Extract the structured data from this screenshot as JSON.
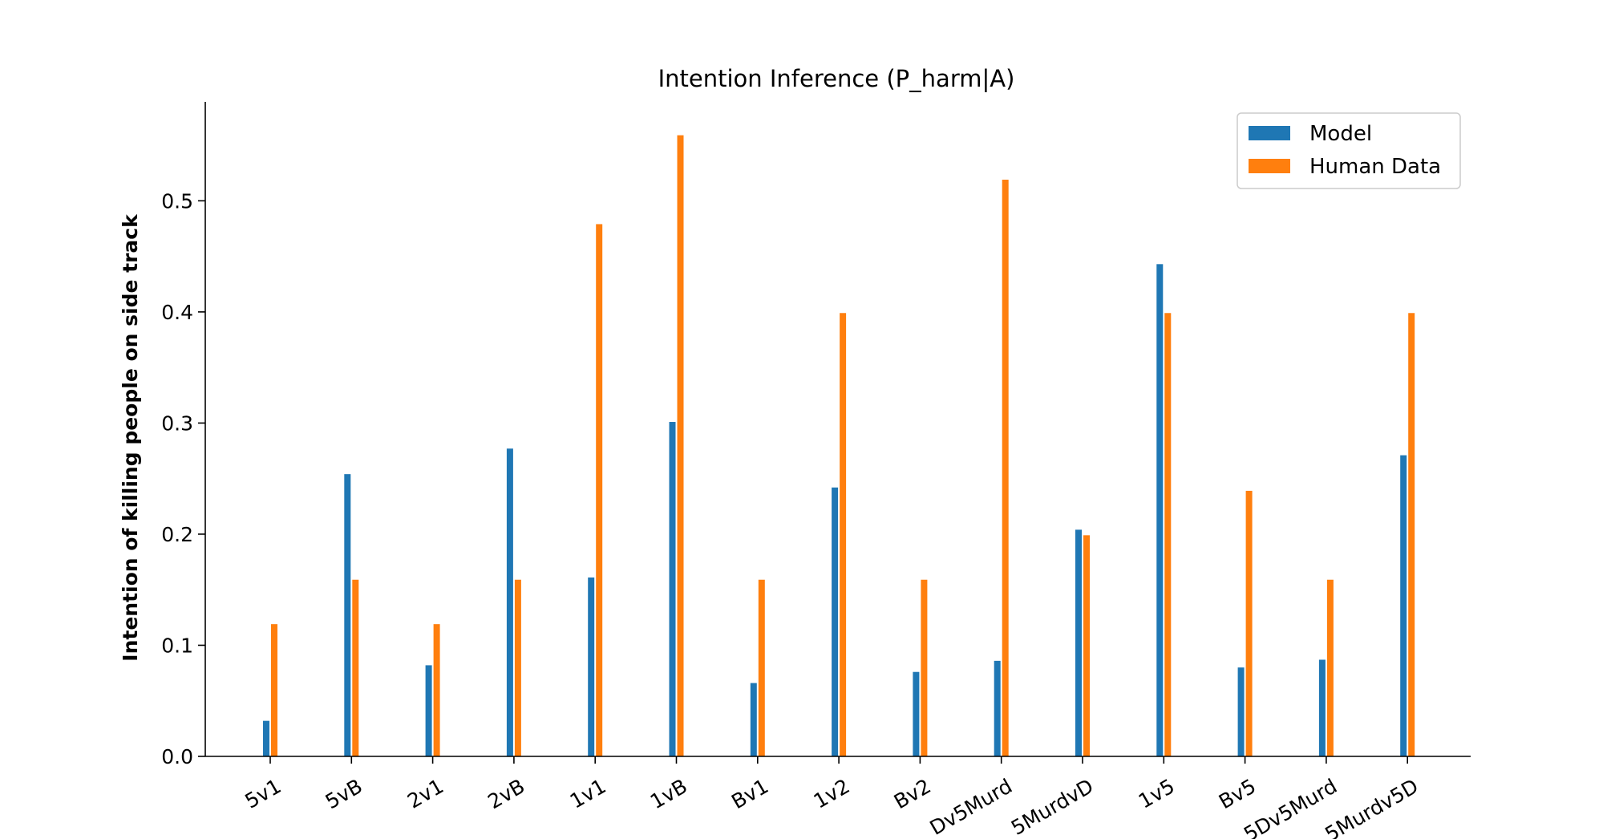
{
  "chart_data": {
    "type": "bar",
    "title": "Intention Inference (P_harm|A)",
    "xlabel": "",
    "ylabel": "Intention of killing people on side track",
    "ylim": [
      0,
      0.59
    ],
    "yticks": [
      "0.0",
      "0.1",
      "0.2",
      "0.3",
      "0.4",
      "0.5"
    ],
    "categories": [
      "5v1",
      "5vB",
      "2v1",
      "2vB",
      "1v1",
      "1vB",
      "Bv1",
      "1v2",
      "Bv2",
      "Dv5Murd",
      "5MurdvD",
      "1v5",
      "Bv5",
      "5Dv5Murd",
      "5Murdv5D"
    ],
    "series": [
      {
        "name": "Model",
        "color": "#1f77b4",
        "values": [
          0.032,
          0.254,
          0.082,
          0.277,
          0.161,
          0.301,
          0.066,
          0.242,
          0.076,
          0.086,
          0.204,
          0.443,
          0.08,
          0.087,
          0.271
        ]
      },
      {
        "name": "Human Data",
        "color": "#ff7f0e",
        "values": [
          0.119,
          0.159,
          0.119,
          0.159,
          0.479,
          0.559,
          0.159,
          0.399,
          0.159,
          0.519,
          0.199,
          0.399,
          0.239,
          0.159,
          0.399
        ]
      }
    ],
    "legend_position": "top-right",
    "grid": false
  }
}
